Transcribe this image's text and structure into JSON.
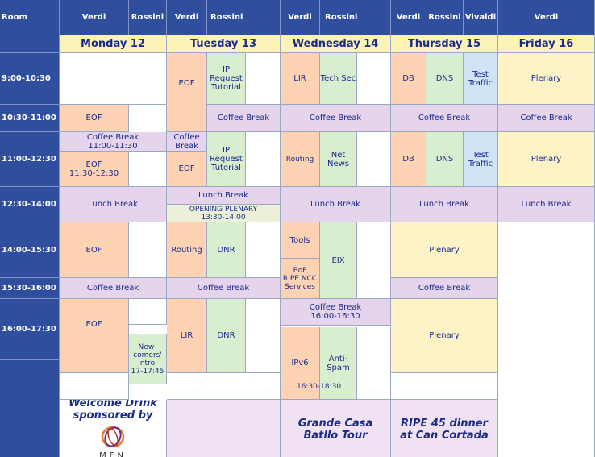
{
  "header": {
    "room": "Room",
    "rooms": [
      "Verdi",
      "Rossini",
      "Verdi",
      "Rossini",
      "Verdi",
      "Rossini",
      "Verdi",
      "Rossini",
      "Vivaldi",
      "Verdi"
    ]
  },
  "days": [
    "Monday 12",
    "Tuesday 13",
    "Wednesday 14",
    "Thursday 15",
    "Friday 16"
  ],
  "times": [
    "9:00-10:30",
    "10:30-11:00",
    "11:00-12:30",
    "12:30-14:00",
    "14:00-15:30",
    "15:30-16:00",
    "16:00-17:30"
  ],
  "sessions": {
    "eof": "EOF",
    "coffee_break": "Coffee Break",
    "lunch_break": "Lunch Break",
    "plenary": "Plenary",
    "ip_request_tutorial": "IP Request Tutorial",
    "lir": "LIR",
    "tech_sec": "Tech Sec",
    "db": "DB",
    "dns": "DNS",
    "test_traffic": "Test Traffic",
    "mon_coffee_line1": "Coffee Break",
    "mon_coffee_line2": "11:00-11:30",
    "mon_eof_line1": "EOF",
    "mon_eof_line2": "11:30-12:30",
    "tue_coffee_line1": "Coffee",
    "tue_coffee_line2": "Break",
    "routing": "Routing",
    "net_news": "Net News",
    "opening_plenary_line1": "OPENING PLENARY",
    "opening_plenary_line2": "13:30-14:00",
    "dnr": "DNR",
    "tools": "Tools",
    "eix": "EIX",
    "bof_line1": "BoF",
    "bof_line2": "RIPE NCC",
    "bof_line3": "Services",
    "wed_coffee_line1": "Coffee Break",
    "wed_coffee_line2": "16:00-16:30",
    "newcomers_line1": "New-",
    "newcomers_line2": "comers'",
    "newcomers_line3": "Intro.",
    "newcomers_line4": "17-17:45",
    "ipv6": "IPv6",
    "anti_spam": "Anti-Spam",
    "wed_late_time": "16:30-18:30"
  },
  "social": {
    "welcome_line1": "Welcome Drink",
    "welcome_line2": "sponsored by",
    "sponsor": "MFN",
    "tour_line1": "Grande Casa",
    "tour_line2": "Batllo Tour",
    "dinner_line1": "RIPE 45 dinner",
    "dinner_line2": "at Can Cortada"
  },
  "colors": {
    "header_blue": "#2f4f9e",
    "day_yellow": "#fdf3b6",
    "eof_orange": "#fdd3b3",
    "tutorial_green": "#d8eecf",
    "coffee_lilac": "#e6d3ec",
    "plenary_cream": "#fdf3c6",
    "security_blue": "#cfe4f4",
    "text_navy": "#1a2b8a"
  }
}
